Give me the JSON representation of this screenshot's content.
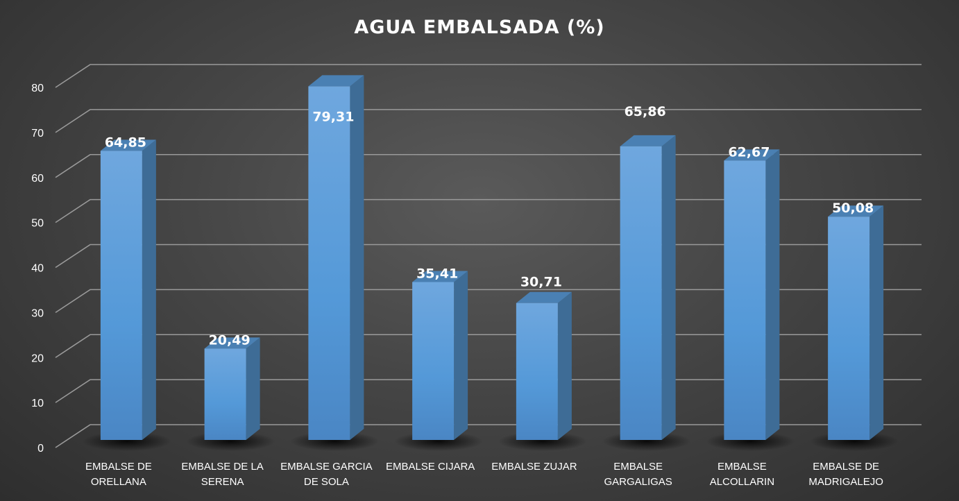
{
  "colors": {
    "bar_front": "#5b9bd5",
    "bar_side": "#3e6c96",
    "bar_top": "#4a80b3",
    "gridline": "#9a9a9a",
    "text": "#ffffff"
  },
  "chart_data": {
    "type": "bar",
    "title": "AGUA EMBALSADA (%)",
    "xlabel": "",
    "ylabel": "",
    "ylim": [
      0,
      80
    ],
    "yticks": [
      "0",
      "10",
      "20",
      "30",
      "40",
      "50",
      "60",
      "70",
      "80"
    ],
    "grid": true,
    "style": "3d-column",
    "categories": [
      [
        "EMBALSE DE",
        "ORELLANA"
      ],
      [
        "EMBALSE DE LA",
        "SERENA"
      ],
      [
        "EMBALSE GARCIA",
        "DE SOLA"
      ],
      [
        "EMBALSE CIJARA"
      ],
      [
        "EMBALSE ZUJAR"
      ],
      [
        "EMBALSE",
        "GARGALIGAS"
      ],
      [
        "EMBALSE",
        "ALCOLLARIN"
      ],
      [
        "EMBALSE DE",
        "MADRIGALEJO"
      ]
    ],
    "values": [
      64.85,
      20.49,
      79.31,
      35.41,
      30.71,
      65.86,
      62.67,
      50.08
    ],
    "value_labels": [
      "64,85",
      "20,49",
      "79,31",
      "35,41",
      "30,71",
      "65,86",
      "62,67",
      "50,08"
    ]
  }
}
